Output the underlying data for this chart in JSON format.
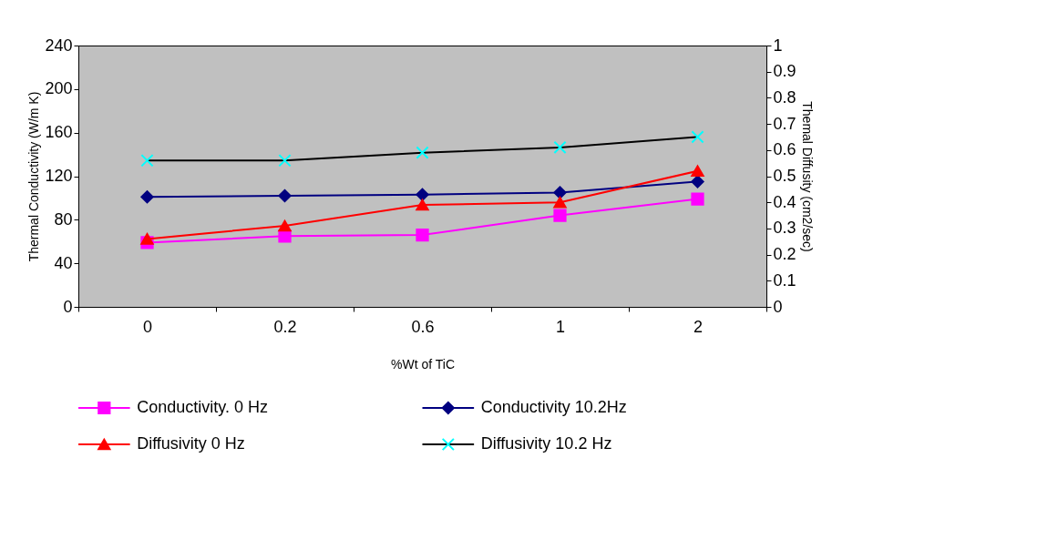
{
  "chart_data": {
    "type": "line",
    "xlabel": "%Wt of TiC",
    "ylabel": "Thermal Conductivity (W/m K)",
    "y2label": "Themal Diffusity (cm2/sec)",
    "categories": [
      "0",
      "0.2",
      "0.6",
      "1",
      "2"
    ],
    "ylim": [
      0,
      240
    ],
    "yticks": [
      0,
      40,
      80,
      120,
      160,
      200,
      240
    ],
    "y2lim": [
      0,
      1
    ],
    "y2ticks": [
      0,
      0.1,
      0.2,
      0.3,
      0.4,
      0.5,
      0.6,
      0.7,
      0.8,
      0.9,
      1
    ],
    "grid": false,
    "legend": "bottom",
    "line_style": "solid",
    "series": [
      {
        "name": "Conductivity. 0 Hz",
        "color": "#ff00ff",
        "marker": "square",
        "values": [
          59,
          65,
          66,
          84,
          99
        ]
      },
      {
        "name": "Conductivity 10.2Hz",
        "color": "#000080",
        "marker": "diamond",
        "values": [
          101,
          102,
          103,
          105,
          115
        ]
      },
      {
        "name": "Diffusivity 0 Hz",
        "color": "#ff0000",
        "marker": "triangle",
        "axis": "y2",
        "values": [
          0.26,
          0.31,
          0.39,
          0.4,
          0.52
        ]
      },
      {
        "name": "Diffusivity 10.2 Hz",
        "color": "#000000",
        "colors": [
          "#00ffff",
          "#00ffff",
          "#00ffff",
          "#00ffff",
          "#00ffff"
        ],
        "marker": "cross",
        "axis": "y2",
        "values": [
          0.56,
          0.56,
          0.59,
          0.61,
          0.65
        ]
      }
    ]
  }
}
